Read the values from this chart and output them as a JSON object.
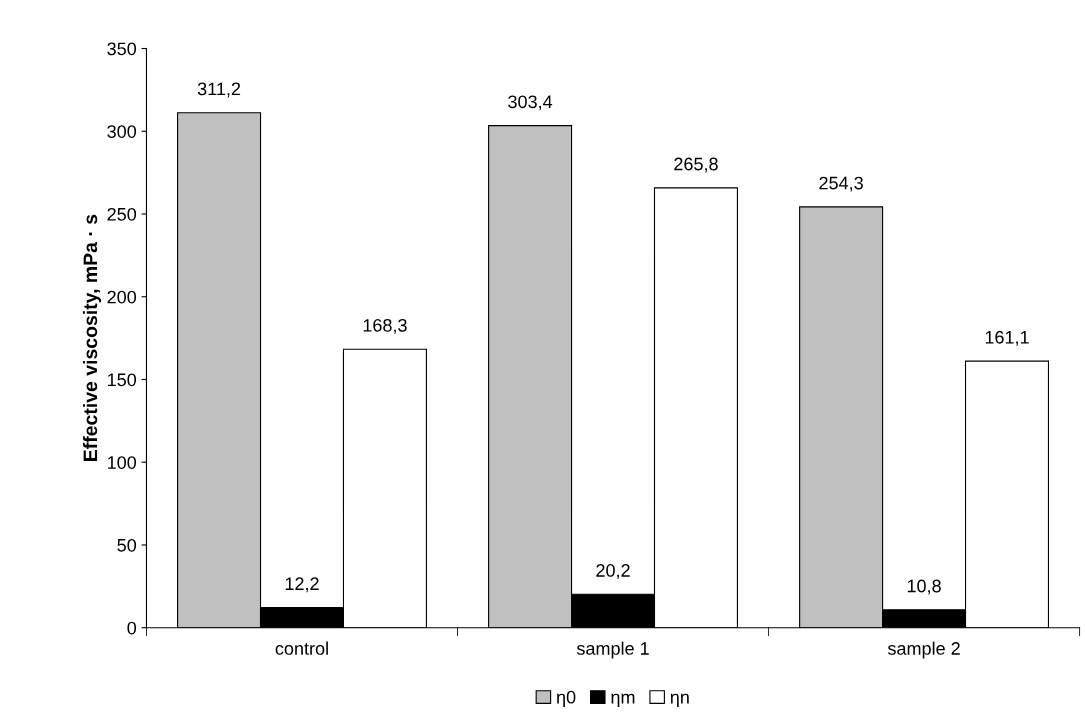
{
  "chart_data": {
    "type": "bar",
    "ylabel": "Effective viscosity, mPa · s",
    "categories": [
      "control",
      "sample 1",
      "sample 2"
    ],
    "series": [
      {
        "name": "η0",
        "color": "#c0c0c0",
        "values": [
          311.2,
          303.4,
          254.3
        ],
        "value_labels": [
          "311,2",
          "303,4",
          "254,3"
        ]
      },
      {
        "name": "ηm",
        "color": "#000000",
        "values": [
          12.2,
          20.2,
          10.8
        ],
        "value_labels": [
          "12,2",
          "20,2",
          "10,8"
        ]
      },
      {
        "name": "ηn",
        "color": "#ffffff",
        "values": [
          168.3,
          265.8,
          161.1
        ],
        "value_labels": [
          "168,3",
          "265,8",
          "161,1"
        ]
      }
    ],
    "ylim": [
      0,
      350
    ],
    "yticks": [
      0,
      50,
      100,
      150,
      200,
      250,
      300,
      350
    ],
    "grid": false,
    "legend": "bottom"
  }
}
